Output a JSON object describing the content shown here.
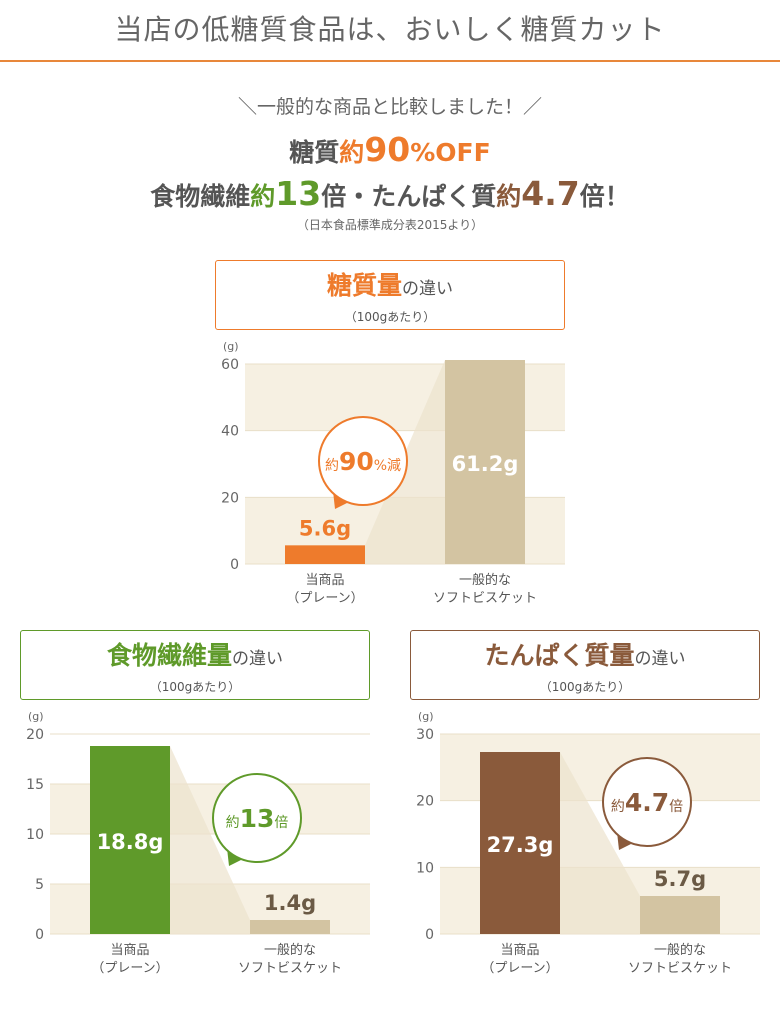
{
  "header": {
    "title": "当店の低糖質食品は、おいしく糖質カット"
  },
  "intro": {
    "subtitle": "＼一般的な商品と比較しました！／",
    "line1": {
      "a": "糖質",
      "b": "約",
      "c": "90",
      "d": "%OFF"
    },
    "line2": {
      "a": "食物繊維",
      "b": "約",
      "c": "13",
      "d": "倍",
      "e": "・たんぱく質",
      "f": "約",
      "g": "4.7",
      "h": "倍！"
    },
    "source": "（日本食品標準成分表2015より）"
  },
  "colors": {
    "orange": "#ee7b2c",
    "green": "#5f9a2a",
    "brown": "#8a5a3b",
    "beige_bar": "#d3c4a2",
    "band": "#f6f0e2"
  },
  "charts": {
    "sugar": {
      "title_main": "糖質量",
      "title_suffix": "の違い",
      "note": "（100gあたり）",
      "callout": {
        "pre": "約",
        "num": "90",
        "post": "%減"
      }
    },
    "fiber": {
      "title_main": "食物繊維量",
      "title_suffix": "の違い",
      "note": "（100gあたり）",
      "callout": {
        "pre": "約",
        "num": "13",
        "post": "倍"
      }
    },
    "protein": {
      "title_main": "たんぱく質量",
      "title_suffix": "の違い",
      "note": "（100gあたり）",
      "callout": {
        "pre": "約",
        "num": "4.7",
        "post": "倍"
      }
    }
  },
  "chart_data": [
    {
      "type": "bar",
      "title": "糖質量の違い（100gあたり）",
      "ylabel": "(g)",
      "ylim": [
        0,
        60
      ],
      "yticks": [
        "0",
        "20",
        "40",
        "60"
      ],
      "categories": [
        [
          "当商品",
          "（プレーン）"
        ],
        [
          "一般的な",
          "ソフトビスケット"
        ]
      ],
      "values": [
        5.6,
        61.2
      ],
      "value_labels": [
        "5.6g",
        "61.2g"
      ],
      "annotation": "約90%減"
    },
    {
      "type": "bar",
      "title": "食物繊維量の違い（100gあたり）",
      "ylabel": "(g)",
      "ylim": [
        0,
        20
      ],
      "yticks": [
        "0",
        "5",
        "10",
        "15",
        "20"
      ],
      "categories": [
        [
          "当商品",
          "（プレーン）"
        ],
        [
          "一般的な",
          "ソフトビスケット"
        ]
      ],
      "values": [
        18.8,
        1.4
      ],
      "value_labels": [
        "18.8g",
        "1.4g"
      ],
      "annotation": "約13倍"
    },
    {
      "type": "bar",
      "title": "たんぱく質量の違い（100gあたり）",
      "ylabel": "(g)",
      "ylim": [
        0,
        30
      ],
      "yticks": [
        "0",
        "10",
        "20",
        "30"
      ],
      "categories": [
        [
          "当商品",
          "（プレーン）"
        ],
        [
          "一般的な",
          "ソフトビスケット"
        ]
      ],
      "values": [
        27.3,
        5.7
      ],
      "value_labels": [
        "27.3g",
        "5.7g"
      ],
      "annotation": "約4.7倍"
    }
  ]
}
